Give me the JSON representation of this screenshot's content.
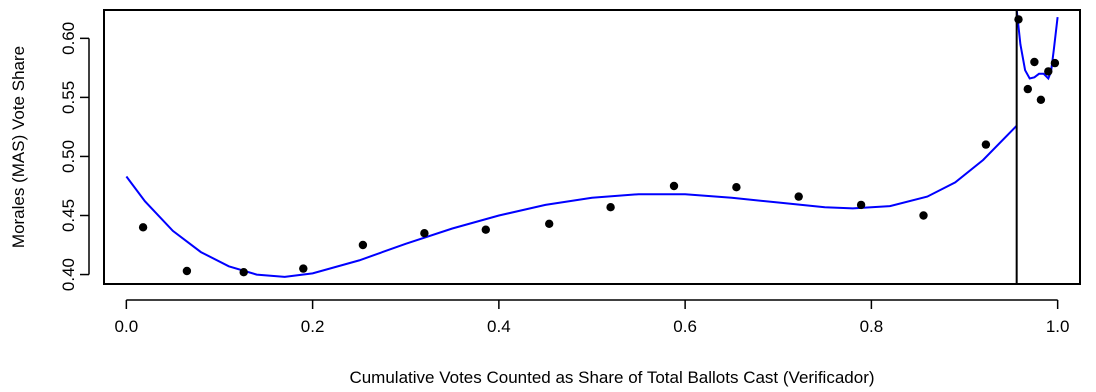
{
  "chart_data": {
    "type": "scatter",
    "title": "",
    "xlabel": "Cumulative Votes Counted as Share of Total Ballots Cast (Verificador)",
    "ylabel": "Morales (MAS) Vote Share",
    "xlim": [
      -0.024,
      1.024
    ],
    "ylim": [
      0.392,
      0.624
    ],
    "x_ticks": [
      "0.0",
      "0.2",
      "0.4",
      "0.6",
      "0.8",
      "1.0"
    ],
    "x_tick_values": [
      0.0,
      0.2,
      0.4,
      0.6,
      0.8,
      1.0
    ],
    "y_ticks": [
      "0.40",
      "0.45",
      "0.50",
      "0.55",
      "0.60"
    ],
    "y_tick_values": [
      0.4,
      0.45,
      0.5,
      0.55,
      0.6
    ],
    "cutoff_x": 0.956,
    "point_color": "#000000",
    "line_color": "#0000ff",
    "grid": false,
    "legend": "none",
    "series": [
      {
        "type": "scatter",
        "x": [
          0.018,
          0.065,
          0.126,
          0.19,
          0.254,
          0.32,
          0.386,
          0.454,
          0.52,
          0.588,
          0.655,
          0.722,
          0.789,
          0.856,
          0.923,
          0.958,
          0.968,
          0.975,
          0.982,
          0.99,
          0.997
        ],
        "y": [
          0.44,
          0.403,
          0.402,
          0.405,
          0.425,
          0.435,
          0.438,
          0.443,
          0.457,
          0.475,
          0.474,
          0.466,
          0.459,
          0.45,
          0.51,
          0.616,
          0.557,
          0.58,
          0.548,
          0.572,
          0.579
        ]
      },
      {
        "type": "line",
        "x": [
          0.0,
          0.02,
          0.05,
          0.08,
          0.11,
          0.14,
          0.17,
          0.2,
          0.25,
          0.3,
          0.35,
          0.4,
          0.45,
          0.5,
          0.55,
          0.6,
          0.65,
          0.7,
          0.75,
          0.78,
          0.82,
          0.86,
          0.89,
          0.92,
          0.956
        ],
        "y": [
          0.483,
          0.462,
          0.437,
          0.419,
          0.407,
          0.4,
          0.398,
          0.401,
          0.412,
          0.426,
          0.439,
          0.45,
          0.459,
          0.465,
          0.468,
          0.468,
          0.465,
          0.461,
          0.457,
          0.456,
          0.458,
          0.466,
          0.478,
          0.497,
          0.526
        ]
      },
      {
        "type": "line",
        "x": [
          0.956,
          0.96,
          0.965,
          0.97,
          0.975,
          0.98,
          0.985,
          0.99,
          0.993,
          0.996,
          1.0
        ],
        "y": [
          0.624,
          0.595,
          0.573,
          0.566,
          0.567,
          0.57,
          0.57,
          0.566,
          0.572,
          0.591,
          0.618
        ]
      }
    ]
  }
}
